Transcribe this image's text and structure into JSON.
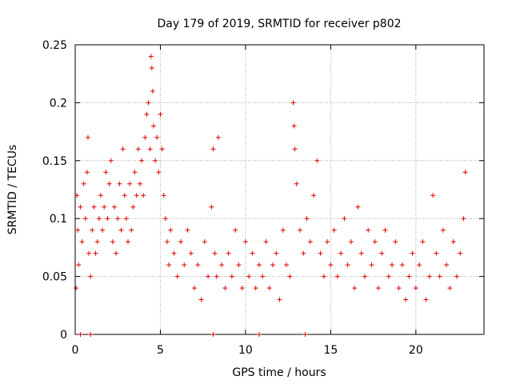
{
  "chart_data": {
    "type": "scatter",
    "title": "Day 179 of 2019, SRMTID for receiver p802",
    "xlabel": "GPS time / hours",
    "ylabel": "SRMTID / TECUs",
    "xlim": [
      0,
      24
    ],
    "ylim": [
      0,
      0.25
    ],
    "x_ticks": [
      "0",
      "5",
      "10",
      "15",
      "20"
    ],
    "y_ticks": [
      "0",
      "0.05",
      "0.1",
      "0.15",
      "0.2",
      "0.25"
    ],
    "grid": true,
    "marker": "+",
    "color": "#e00000",
    "series": [
      {
        "name": "SRMTID",
        "x": [
          0.05,
          0.1,
          0.15,
          0.2,
          0.3,
          0.4,
          0.5,
          0.6,
          0.7,
          0.75,
          0.8,
          0.9,
          1.0,
          1.1,
          1.2,
          1.3,
          1.4,
          1.5,
          1.6,
          1.7,
          1.8,
          1.9,
          2.0,
          2.1,
          2.2,
          2.3,
          2.4,
          2.5,
          2.6,
          2.7,
          2.8,
          2.9,
          3.0,
          3.1,
          3.2,
          3.3,
          3.4,
          3.5,
          3.6,
          3.7,
          3.8,
          3.9,
          4.0,
          4.1,
          4.2,
          4.3,
          4.4,
          4.45,
          4.5,
          4.55,
          4.6,
          4.7,
          4.8,
          4.9,
          5.0,
          5.1,
          5.2,
          5.3,
          5.4,
          5.5,
          5.6,
          5.8,
          6.0,
          6.2,
          6.4,
          6.6,
          6.8,
          7.0,
          7.2,
          7.4,
          7.6,
          7.8,
          8.0,
          8.1,
          8.2,
          8.3,
          8.4,
          8.6,
          8.8,
          9.0,
          9.2,
          9.4,
          9.6,
          9.8,
          10.0,
          10.2,
          10.4,
          10.6,
          10.8,
          11.0,
          11.2,
          11.4,
          11.6,
          11.8,
          12.0,
          12.2,
          12.4,
          12.6,
          12.8,
          12.85,
          12.9,
          13.0,
          13.2,
          13.4,
          13.6,
          13.8,
          14.0,
          14.2,
          14.4,
          14.6,
          14.8,
          15.0,
          15.2,
          15.4,
          15.6,
          15.8,
          16.0,
          16.2,
          16.4,
          16.6,
          16.8,
          17.0,
          17.2,
          17.4,
          17.6,
          17.8,
          18.0,
          18.2,
          18.4,
          18.6,
          18.8,
          19.0,
          19.2,
          19.4,
          19.6,
          19.8,
          20.0,
          20.2,
          20.4,
          20.6,
          20.8,
          21.0,
          21.2,
          21.4,
          21.6,
          21.8,
          22.0,
          22.2,
          22.4,
          22.6,
          22.8,
          22.9,
          0.3,
          0.9,
          8.1,
          10.8,
          13.5
        ],
        "y": [
          0.04,
          0.12,
          0.09,
          0.06,
          0.11,
          0.08,
          0.13,
          0.1,
          0.14,
          0.17,
          0.07,
          0.05,
          0.09,
          0.11,
          0.07,
          0.08,
          0.1,
          0.12,
          0.09,
          0.11,
          0.14,
          0.1,
          0.13,
          0.15,
          0.08,
          0.11,
          0.07,
          0.1,
          0.13,
          0.09,
          0.16,
          0.12,
          0.1,
          0.08,
          0.13,
          0.09,
          0.11,
          0.14,
          0.12,
          0.16,
          0.13,
          0.15,
          0.12,
          0.17,
          0.19,
          0.2,
          0.16,
          0.24,
          0.23,
          0.21,
          0.18,
          0.15,
          0.17,
          0.14,
          0.19,
          0.16,
          0.12,
          0.1,
          0.08,
          0.06,
          0.09,
          0.07,
          0.05,
          0.08,
          0.06,
          0.09,
          0.07,
          0.04,
          0.06,
          0.03,
          0.08,
          0.05,
          0.11,
          0.16,
          0.07,
          0.05,
          0.17,
          0.06,
          0.04,
          0.07,
          0.05,
          0.09,
          0.06,
          0.04,
          0.08,
          0.05,
          0.07,
          0.04,
          0.06,
          0.05,
          0.08,
          0.04,
          0.06,
          0.07,
          0.03,
          0.09,
          0.06,
          0.05,
          0.2,
          0.18,
          0.16,
          0.13,
          0.09,
          0.07,
          0.1,
          0.08,
          0.12,
          0.15,
          0.07,
          0.05,
          0.08,
          0.06,
          0.09,
          0.05,
          0.07,
          0.1,
          0.06,
          0.08,
          0.04,
          0.11,
          0.07,
          0.05,
          0.09,
          0.06,
          0.08,
          0.04,
          0.07,
          0.09,
          0.05,
          0.06,
          0.08,
          0.04,
          0.06,
          0.03,
          0.05,
          0.07,
          0.04,
          0.06,
          0.08,
          0.03,
          0.05,
          0.12,
          0.07,
          0.05,
          0.09,
          0.06,
          0.04,
          0.08,
          0.05,
          0.07,
          0.1,
          0.14,
          0.0,
          0.0,
          0.0,
          0.0,
          0.0
        ]
      }
    ]
  }
}
